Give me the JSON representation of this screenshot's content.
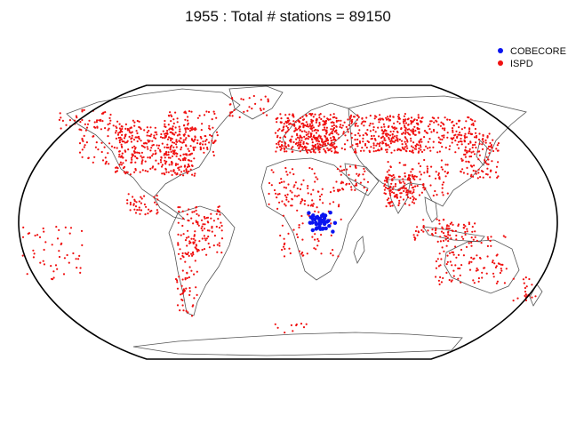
{
  "title": "1955 : Total # stations = 89150",
  "legend": [
    {
      "label": "COBECORE",
      "color": "#0a14f0"
    },
    {
      "label": "ISPD",
      "color": "#f01010"
    }
  ],
  "map": {
    "projection": "Robinson",
    "border_color": "#000000",
    "coastline_color": "#555555"
  }
}
